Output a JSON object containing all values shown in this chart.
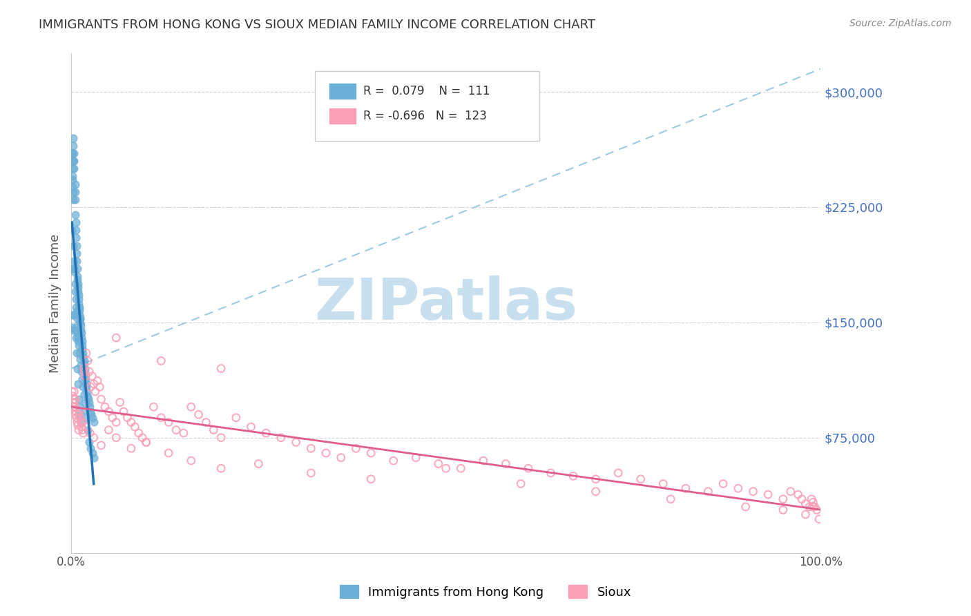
{
  "title": "IMMIGRANTS FROM HONG KONG VS SIOUX MEDIAN FAMILY INCOME CORRELATION CHART",
  "source": "Source: ZipAtlas.com",
  "xlabel": "",
  "ylabel": "Median Family Income",
  "xlim": [
    0,
    1.0
  ],
  "ylim": [
    0,
    325000
  ],
  "xticks": [
    0.0,
    0.25,
    0.5,
    0.75,
    1.0
  ],
  "xticklabels": [
    "0.0%",
    "",
    "",
    "",
    "100.0%"
  ],
  "ytick_values": [
    75000,
    150000,
    225000,
    300000
  ],
  "ytick_labels": [
    "$75,000",
    "$150,000",
    "$225,000",
    "$300,000"
  ],
  "blue_R": 0.079,
  "blue_N": 111,
  "pink_R": -0.696,
  "pink_N": 123,
  "blue_color": "#6baed6",
  "pink_color": "#fa9fb5",
  "trend_blue_color": "#2171b5",
  "trend_pink_color": "#e05c8a",
  "trend_dashed_color": "#9ecae1",
  "watermark": "ZIPatlas",
  "watermark_color": "#c8dff0",
  "blue_scatter_x": [
    0.001,
    0.002,
    0.002,
    0.003,
    0.003,
    0.003,
    0.004,
    0.004,
    0.004,
    0.005,
    0.005,
    0.005,
    0.005,
    0.006,
    0.006,
    0.006,
    0.007,
    0.007,
    0.007,
    0.008,
    0.008,
    0.008,
    0.009,
    0.009,
    0.009,
    0.01,
    0.01,
    0.01,
    0.011,
    0.011,
    0.011,
    0.012,
    0.012,
    0.012,
    0.013,
    0.013,
    0.014,
    0.014,
    0.015,
    0.015,
    0.015,
    0.016,
    0.016,
    0.017,
    0.017,
    0.018,
    0.018,
    0.019,
    0.019,
    0.02,
    0.02,
    0.021,
    0.022,
    0.023,
    0.024,
    0.025,
    0.026,
    0.027,
    0.028,
    0.03,
    0.001,
    0.002,
    0.002,
    0.003,
    0.003,
    0.004,
    0.004,
    0.005,
    0.005,
    0.006,
    0.006,
    0.007,
    0.007,
    0.008,
    0.008,
    0.009,
    0.009,
    0.01,
    0.011,
    0.012,
    0.013,
    0.014,
    0.015,
    0.016,
    0.017,
    0.018,
    0.019,
    0.02,
    0.022,
    0.024,
    0.026,
    0.028,
    0.03,
    0.001,
    0.001,
    0.001,
    0.002,
    0.002,
    0.003,
    0.003,
    0.004,
    0.004,
    0.005,
    0.006,
    0.007,
    0.008,
    0.009,
    0.01,
    0.011,
    0.012,
    0.013
  ],
  "blue_scatter_y": [
    145000,
    250000,
    260000,
    270000,
    265000,
    255000,
    260000,
    255000,
    250000,
    240000,
    235000,
    230000,
    220000,
    215000,
    210000,
    205000,
    200000,
    195000,
    190000,
    185000,
    180000,
    178000,
    175000,
    173000,
    170000,
    168000,
    165000,
    162000,
    160000,
    158000,
    155000,
    153000,
    152000,
    150000,
    148000,
    145000,
    143000,
    140000,
    138000,
    135000,
    133000,
    130000,
    128000,
    125000,
    123000,
    120000,
    118000,
    115000,
    113000,
    110000,
    108000,
    105000,
    102000,
    100000,
    98000,
    95000,
    92000,
    90000,
    88000,
    85000,
    155000,
    243000,
    238000,
    235000,
    200000,
    190000,
    185000,
    175000,
    170000,
    165000,
    160000,
    157000,
    153000,
    148000,
    143000,
    140000,
    138000,
    135000,
    130000,
    126000,
    122000,
    118000,
    113000,
    108000,
    103000,
    98000,
    93000,
    88000,
    80000,
    72000,
    68000,
    65000,
    62000,
    147000,
    210000,
    260000,
    255000,
    245000,
    230000,
    185000,
    183000,
    155000,
    145000,
    140000,
    130000,
    120000,
    110000,
    100000,
    95000,
    90000,
    85000
  ],
  "pink_scatter_x": [
    0.001,
    0.002,
    0.003,
    0.003,
    0.004,
    0.004,
    0.005,
    0.005,
    0.006,
    0.006,
    0.007,
    0.008,
    0.009,
    0.01,
    0.011,
    0.012,
    0.013,
    0.014,
    0.015,
    0.016,
    0.017,
    0.018,
    0.019,
    0.02,
    0.022,
    0.024,
    0.026,
    0.028,
    0.03,
    0.032,
    0.035,
    0.038,
    0.04,
    0.045,
    0.05,
    0.055,
    0.06,
    0.065,
    0.07,
    0.075,
    0.08,
    0.085,
    0.09,
    0.095,
    0.1,
    0.11,
    0.12,
    0.13,
    0.14,
    0.15,
    0.16,
    0.17,
    0.18,
    0.19,
    0.2,
    0.22,
    0.24,
    0.26,
    0.28,
    0.3,
    0.32,
    0.34,
    0.36,
    0.38,
    0.4,
    0.43,
    0.46,
    0.49,
    0.52,
    0.55,
    0.58,
    0.61,
    0.64,
    0.67,
    0.7,
    0.73,
    0.76,
    0.79,
    0.82,
    0.85,
    0.87,
    0.89,
    0.91,
    0.93,
    0.95,
    0.96,
    0.97,
    0.975,
    0.98,
    0.985,
    0.988,
    0.99,
    0.992,
    0.005,
    0.01,
    0.015,
    0.02,
    0.025,
    0.03,
    0.04,
    0.05,
    0.06,
    0.08,
    0.1,
    0.13,
    0.16,
    0.2,
    0.25,
    0.32,
    0.4,
    0.5,
    0.6,
    0.7,
    0.8,
    0.9,
    0.95,
    0.98,
    0.99,
    0.995,
    0.998,
    0.06,
    0.12,
    0.2
  ],
  "pink_scatter_y": [
    105000,
    102000,
    98000,
    95000,
    105000,
    98000,
    100000,
    95000,
    92000,
    90000,
    88000,
    85000,
    83000,
    80000,
    92000,
    88000,
    85000,
    82000,
    80000,
    78000,
    120000,
    118000,
    115000,
    130000,
    125000,
    118000,
    108000,
    115000,
    110000,
    105000,
    112000,
    108000,
    100000,
    95000,
    92000,
    88000,
    85000,
    98000,
    92000,
    88000,
    85000,
    82000,
    78000,
    75000,
    72000,
    95000,
    88000,
    85000,
    80000,
    78000,
    95000,
    90000,
    85000,
    80000,
    75000,
    88000,
    82000,
    78000,
    75000,
    72000,
    68000,
    65000,
    62000,
    68000,
    65000,
    60000,
    62000,
    58000,
    55000,
    60000,
    58000,
    55000,
    52000,
    50000,
    48000,
    52000,
    48000,
    45000,
    42000,
    40000,
    45000,
    42000,
    40000,
    38000,
    35000,
    40000,
    38000,
    35000,
    32000,
    30000,
    35000,
    33000,
    30000,
    100000,
    90000,
    85000,
    82000,
    78000,
    75000,
    70000,
    80000,
    75000,
    68000,
    72000,
    65000,
    60000,
    55000,
    58000,
    52000,
    48000,
    55000,
    45000,
    40000,
    35000,
    30000,
    28000,
    25000,
    30000,
    28000,
    22000,
    140000,
    125000,
    120000
  ]
}
